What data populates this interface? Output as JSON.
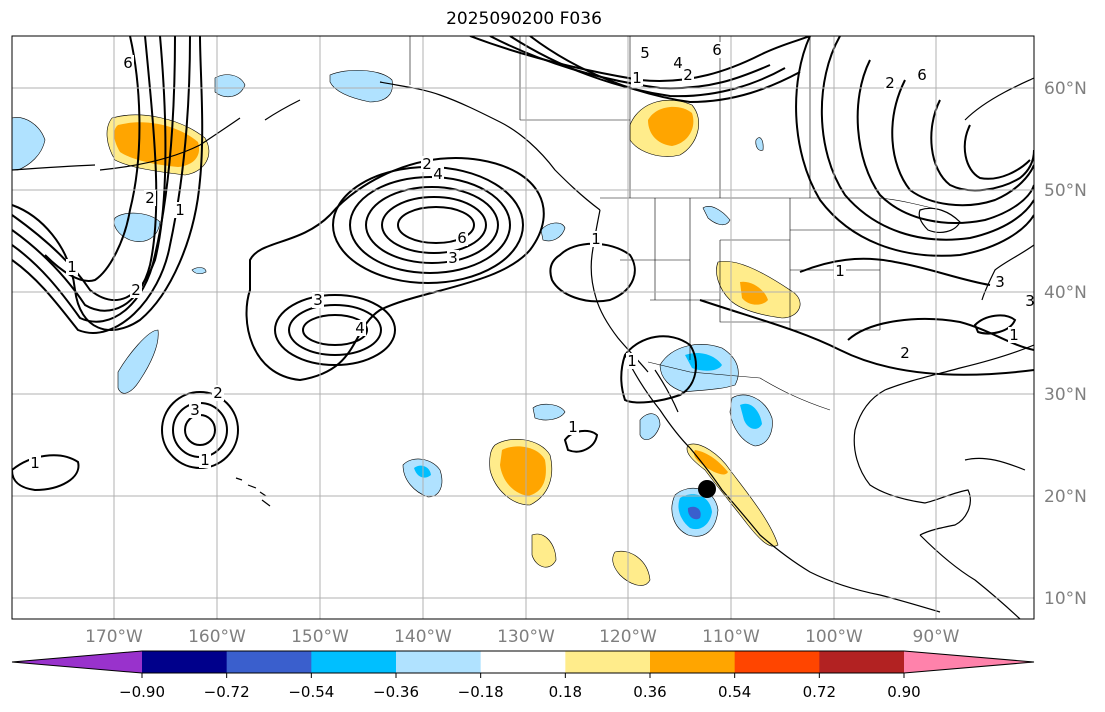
{
  "title": "2025090200 F036",
  "lon_labels": [
    "170°W",
    "160°W",
    "150°W",
    "140°W",
    "130°W",
    "120°W",
    "110°W",
    "100°W",
    "90°W"
  ],
  "lat_labels": [
    "60°N",
    "50°N",
    "40°N",
    "30°N",
    "20°N",
    "10°N"
  ],
  "colorbar": {
    "colors": [
      "#9932cc",
      "#00008b",
      "#3a5fcd",
      "#00bfff",
      "#b0e2ff",
      "#ffffff",
      "#ffec8b",
      "#ffa500",
      "#ff4500",
      "#b22222",
      "#ff82ab"
    ],
    "tick_labels": [
      "−0.90",
      "−0.72",
      "−0.54",
      "−0.36",
      "−0.18",
      "0.18",
      "0.36",
      "0.54",
      "0.72",
      "0.90"
    ]
  },
  "contour_labels": [
    "6",
    "1",
    "2",
    "1",
    "4",
    "2",
    "6",
    "3",
    "3",
    "4",
    "2",
    "3",
    "1",
    "1",
    "2",
    "6",
    "5",
    "4",
    "1",
    "2",
    "6",
    "6",
    "2",
    "1",
    "3",
    "2",
    "1",
    "1",
    "1",
    "1",
    "3"
  ],
  "colors": {
    "land_outline": "#000000",
    "grid": "#b0b0b0",
    "contour": "#000000",
    "marker": "#000000"
  }
}
